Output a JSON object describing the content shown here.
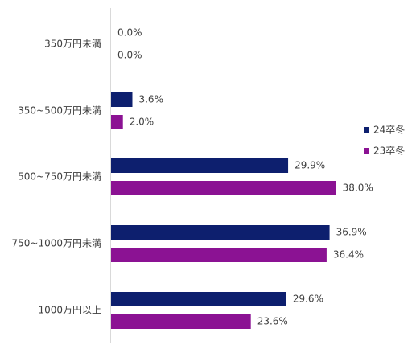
{
  "chart_data": {
    "type": "bar",
    "orientation": "horizontal",
    "categories": [
      "350万円未満",
      "350~500万円未満",
      "500~750万円未満",
      "750~1000万円未満",
      "1000万円以上"
    ],
    "series": [
      {
        "name": "24卒冬",
        "values": [
          0.0,
          3.6,
          29.9,
          36.9,
          29.6
        ],
        "labels": [
          "0.0%",
          "3.6%",
          "29.9%",
          "36.9%",
          "29.6%"
        ],
        "color": "#0d1f6e"
      },
      {
        "name": "23卒冬",
        "values": [
          0.0,
          2.0,
          38.0,
          36.4,
          23.6
        ],
        "labels": [
          "0.0%",
          "2.0%",
          "38.0%",
          "36.4%",
          "23.6%"
        ],
        "color": "#8b1293"
      }
    ],
    "xlim": [
      0,
      45
    ],
    "grid": false,
    "legend_position": "right"
  }
}
